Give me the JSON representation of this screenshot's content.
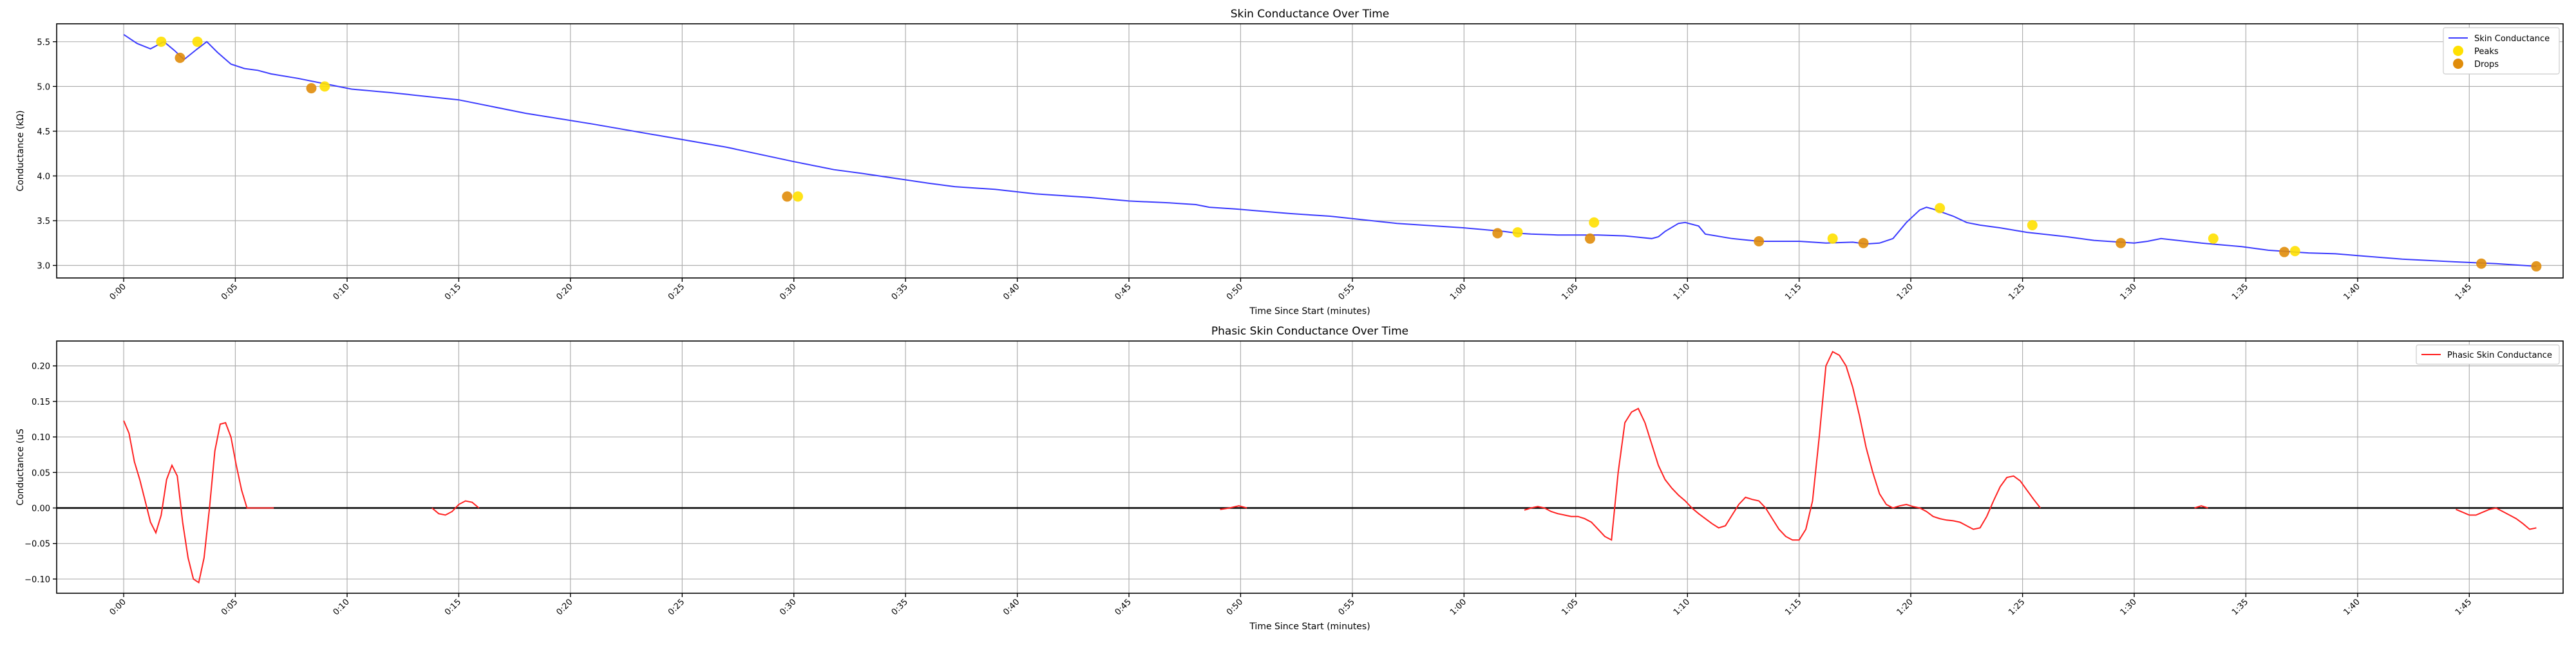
{
  "chart_data": [
    {
      "type": "scatter",
      "title": "Skin Conductance Over Time",
      "xlabel": "Time Since Start (minutes)",
      "ylabel": "Conductance (kΩ)",
      "xlim": [
        -0.05,
        1.82
      ],
      "ylim": [
        2.86,
        5.7
      ],
      "x_ticks": [
        0.0,
        0.0833,
        0.1667,
        0.25,
        0.3333,
        0.4167,
        0.5,
        0.5833,
        0.6667,
        0.75,
        0.8333,
        0.9167,
        1.0,
        1.0833,
        1.1667,
        1.25,
        1.3333,
        1.4167,
        1.5,
        1.5833,
        1.6667,
        1.75
      ],
      "x_tick_labels": [
        "0:00",
        "0:05",
        "0:10",
        "0:15",
        "0:20",
        "0:25",
        "0:30",
        "0:35",
        "0:40",
        "0:45",
        "0:50",
        "0:55",
        "1:00",
        "1:05",
        "1:10",
        "1:15",
        "1:20",
        "1:25",
        "1:30",
        "1:35",
        "1:40",
        "1:45"
      ],
      "y_ticks": [
        3.0,
        3.5,
        4.0,
        4.5,
        5.0,
        5.5
      ],
      "y_tick_labels": [
        "3.0",
        "3.5",
        "4.0",
        "4.5",
        "5.0",
        "5.5"
      ],
      "grid": true,
      "legend": "top-right",
      "series": [
        {
          "name": "Skin Conductance",
          "kind": "line",
          "color": "#3b3bff",
          "x": [
            0.0,
            0.01,
            0.02,
            0.03,
            0.038,
            0.045,
            0.055,
            0.062,
            0.07,
            0.08,
            0.09,
            0.1,
            0.11,
            0.13,
            0.15,
            0.17,
            0.2,
            0.25,
            0.3,
            0.35,
            0.4,
            0.45,
            0.5,
            0.52,
            0.53,
            0.55,
            0.6,
            0.62,
            0.65,
            0.68,
            0.72,
            0.75,
            0.78,
            0.8,
            0.81,
            0.83,
            0.87,
            0.9,
            0.95,
            1.0,
            1.03,
            1.04,
            1.05,
            1.07,
            1.1,
            1.12,
            1.14,
            1.145,
            1.15,
            1.16,
            1.165,
            1.175,
            1.18,
            1.2,
            1.22,
            1.25,
            1.27,
            1.29,
            1.3,
            1.31,
            1.32,
            1.33,
            1.34,
            1.345,
            1.35,
            1.365,
            1.375,
            1.385,
            1.4,
            1.42,
            1.45,
            1.47,
            1.49,
            1.5,
            1.51,
            1.52,
            1.55,
            1.58,
            1.6,
            1.62,
            1.63,
            1.65,
            1.7,
            1.74,
            1.77,
            1.8
          ],
          "y": [
            5.58,
            5.48,
            5.42,
            5.5,
            5.4,
            5.3,
            5.42,
            5.5,
            5.38,
            5.25,
            5.2,
            5.18,
            5.14,
            5.09,
            5.03,
            4.97,
            4.93,
            4.85,
            4.7,
            4.58,
            4.45,
            4.32,
            4.16,
            4.1,
            4.07,
            4.03,
            3.92,
            3.88,
            3.85,
            3.8,
            3.76,
            3.72,
            3.7,
            3.68,
            3.65,
            3.63,
            3.58,
            3.55,
            3.47,
            3.42,
            3.38,
            3.36,
            3.35,
            3.34,
            3.34,
            3.33,
            3.3,
            3.32,
            3.38,
            3.47,
            3.48,
            3.44,
            3.35,
            3.3,
            3.27,
            3.27,
            3.25,
            3.26,
            3.24,
            3.25,
            3.3,
            3.48,
            3.62,
            3.65,
            3.63,
            3.55,
            3.48,
            3.45,
            3.42,
            3.37,
            3.32,
            3.28,
            3.26,
            3.25,
            3.27,
            3.3,
            3.25,
            3.21,
            3.17,
            3.15,
            3.14,
            3.13,
            3.07,
            3.04,
            3.02,
            2.99
          ]
        },
        {
          "name": "Peaks",
          "kind": "points",
          "color": "#ffe000",
          "x": [
            0.028,
            0.055,
            0.15,
            0.503,
            1.04,
            1.097,
            1.275,
            1.355,
            1.424,
            1.559,
            1.62
          ],
          "y": [
            5.5,
            5.5,
            5.0,
            3.77,
            3.37,
            3.48,
            3.3,
            3.64,
            3.45,
            3.3,
            3.16
          ]
        },
        {
          "name": "Drops",
          "kind": "points",
          "color": "#e08c0a",
          "x": [
            0.042,
            0.14,
            0.495,
            1.025,
            1.094,
            1.22,
            1.298,
            1.49,
            1.612,
            1.759,
            1.8
          ],
          "y": [
            5.32,
            4.98,
            3.77,
            3.36,
            3.3,
            3.27,
            3.25,
            3.25,
            3.15,
            3.02,
            2.99
          ]
        }
      ]
    },
    {
      "type": "line",
      "title": "Phasic Skin Conductance Over Time",
      "xlabel": "Time Since Start (minutes)",
      "ylabel": "Conductance (uS",
      "xlim": [
        -0.05,
        1.82
      ],
      "ylim": [
        -0.12,
        0.235
      ],
      "x_ticks": [
        0.0,
        0.0833,
        0.1667,
        0.25,
        0.3333,
        0.4167,
        0.5,
        0.5833,
        0.6667,
        0.75,
        0.8333,
        0.9167,
        1.0,
        1.0833,
        1.1667,
        1.25,
        1.3333,
        1.4167,
        1.5,
        1.5833,
        1.6667,
        1.75
      ],
      "x_tick_labels": [
        "0:00",
        "0:05",
        "0:10",
        "0:15",
        "0:20",
        "0:25",
        "0:30",
        "0:35",
        "0:40",
        "0:45",
        "0:50",
        "0:55",
        "1:00",
        "1:05",
        "1:10",
        "1:15",
        "1:20",
        "1:25",
        "1:30",
        "1:35",
        "1:40",
        "1:45"
      ],
      "y_ticks": [
        -0.1,
        -0.05,
        0.0,
        0.05,
        0.1,
        0.15,
        0.2
      ],
      "y_tick_labels": [
        "−0.10",
        "−0.05",
        "0.00",
        "0.05",
        "0.10",
        "0.15",
        "0.20"
      ],
      "grid": true,
      "legend": "top-right",
      "zero_line": true,
      "series": [
        {
          "name": "Phasic Skin Conductance",
          "color": "#ff2020",
          "segments": [
            {
              "x": [
                0.0,
                0.004,
                0.008,
                0.012,
                0.016,
                0.02,
                0.024,
                0.028,
                0.032,
                0.036,
                0.04,
                0.044,
                0.048,
                0.052,
                0.056,
                0.06,
                0.064,
                0.068,
                0.072,
                0.076,
                0.08,
                0.084,
                0.088,
                0.092,
                0.096,
                0.1,
                0.104,
                0.108,
                0.112
              ],
              "y": [
                0.123,
                0.105,
                0.065,
                0.04,
                0.01,
                -0.02,
                -0.035,
                -0.01,
                0.04,
                0.06,
                0.045,
                -0.02,
                -0.07,
                -0.1,
                -0.105,
                -0.07,
                0.0,
                0.08,
                0.118,
                0.12,
                0.1,
                0.06,
                0.025,
                0.0,
                0.0,
                0.0,
                0.0,
                0.0,
                0.0
              ]
            },
            {
              "x": [
                0.23,
                0.235,
                0.24,
                0.245,
                0.25,
                0.255,
                0.26,
                0.265
              ],
              "y": [
                0.0,
                -0.008,
                -0.01,
                -0.005,
                0.005,
                0.01,
                0.008,
                0.0
              ]
            },
            {
              "x": [
                0.818,
                0.825,
                0.832,
                0.838
              ],
              "y": [
                -0.002,
                0.0,
                0.003,
                0.0
              ]
            },
            {
              "x": [
                1.045,
                1.05,
                1.055,
                1.06,
                1.065,
                1.07,
                1.075,
                1.08,
                1.085,
                1.09,
                1.095,
                1.1,
                1.105,
                1.11,
                1.115,
                1.12,
                1.125,
                1.13,
                1.135,
                1.14,
                1.145,
                1.15,
                1.155,
                1.16,
                1.165,
                1.17,
                1.175,
                1.18,
                1.185,
                1.19,
                1.195,
                1.2,
                1.205,
                1.21,
                1.215,
                1.22,
                1.225,
                1.23,
                1.235,
                1.24,
                1.245,
                1.25,
                1.255,
                1.26,
                1.265,
                1.27,
                1.275,
                1.28,
                1.285,
                1.29,
                1.295,
                1.3,
                1.305,
                1.31,
                1.315,
                1.32,
                1.325,
                1.33,
                1.335,
                1.34,
                1.345,
                1.35,
                1.355,
                1.36,
                1.365,
                1.37,
                1.375,
                1.38,
                1.385,
                1.39,
                1.395,
                1.4,
                1.405,
                1.41,
                1.415,
                1.42,
                1.425,
                1.43
              ],
              "y": [
                -0.003,
                0.0,
                0.002,
                0.0,
                -0.005,
                -0.008,
                -0.01,
                -0.012,
                -0.012,
                -0.015,
                -0.02,
                -0.03,
                -0.04,
                -0.045,
                0.05,
                0.12,
                0.135,
                0.14,
                0.12,
                0.09,
                0.06,
                0.04,
                0.028,
                0.018,
                0.01,
                0.0,
                -0.008,
                -0.015,
                -0.022,
                -0.028,
                -0.025,
                -0.01,
                0.005,
                0.015,
                0.012,
                0.01,
                0.0,
                -0.015,
                -0.03,
                -0.04,
                -0.045,
                -0.045,
                -0.03,
                0.01,
                0.1,
                0.2,
                0.22,
                0.215,
                0.2,
                0.17,
                0.13,
                0.085,
                0.05,
                0.02,
                0.005,
                0.0,
                0.003,
                0.005,
                0.002,
                0.0,
                -0.005,
                -0.012,
                -0.015,
                -0.017,
                -0.018,
                -0.02,
                -0.025,
                -0.03,
                -0.028,
                -0.012,
                0.01,
                0.03,
                0.043,
                0.045,
                0.038,
                0.025,
                0.012,
                0.0
              ]
            },
            {
              "x": [
                1.545,
                1.55,
                1.555
              ],
              "y": [
                0.0,
                0.003,
                0.0
              ]
            },
            {
              "x": [
                1.74,
                1.745,
                1.75,
                1.755,
                1.76,
                1.765,
                1.77,
                1.775,
                1.78,
                1.785,
                1.79,
                1.795,
                1.8
              ],
              "y": [
                -0.002,
                -0.006,
                -0.01,
                -0.01,
                -0.006,
                -0.002,
                0.0,
                -0.005,
                -0.01,
                -0.015,
                -0.022,
                -0.03,
                -0.028
              ]
            }
          ]
        }
      ]
    }
  ]
}
